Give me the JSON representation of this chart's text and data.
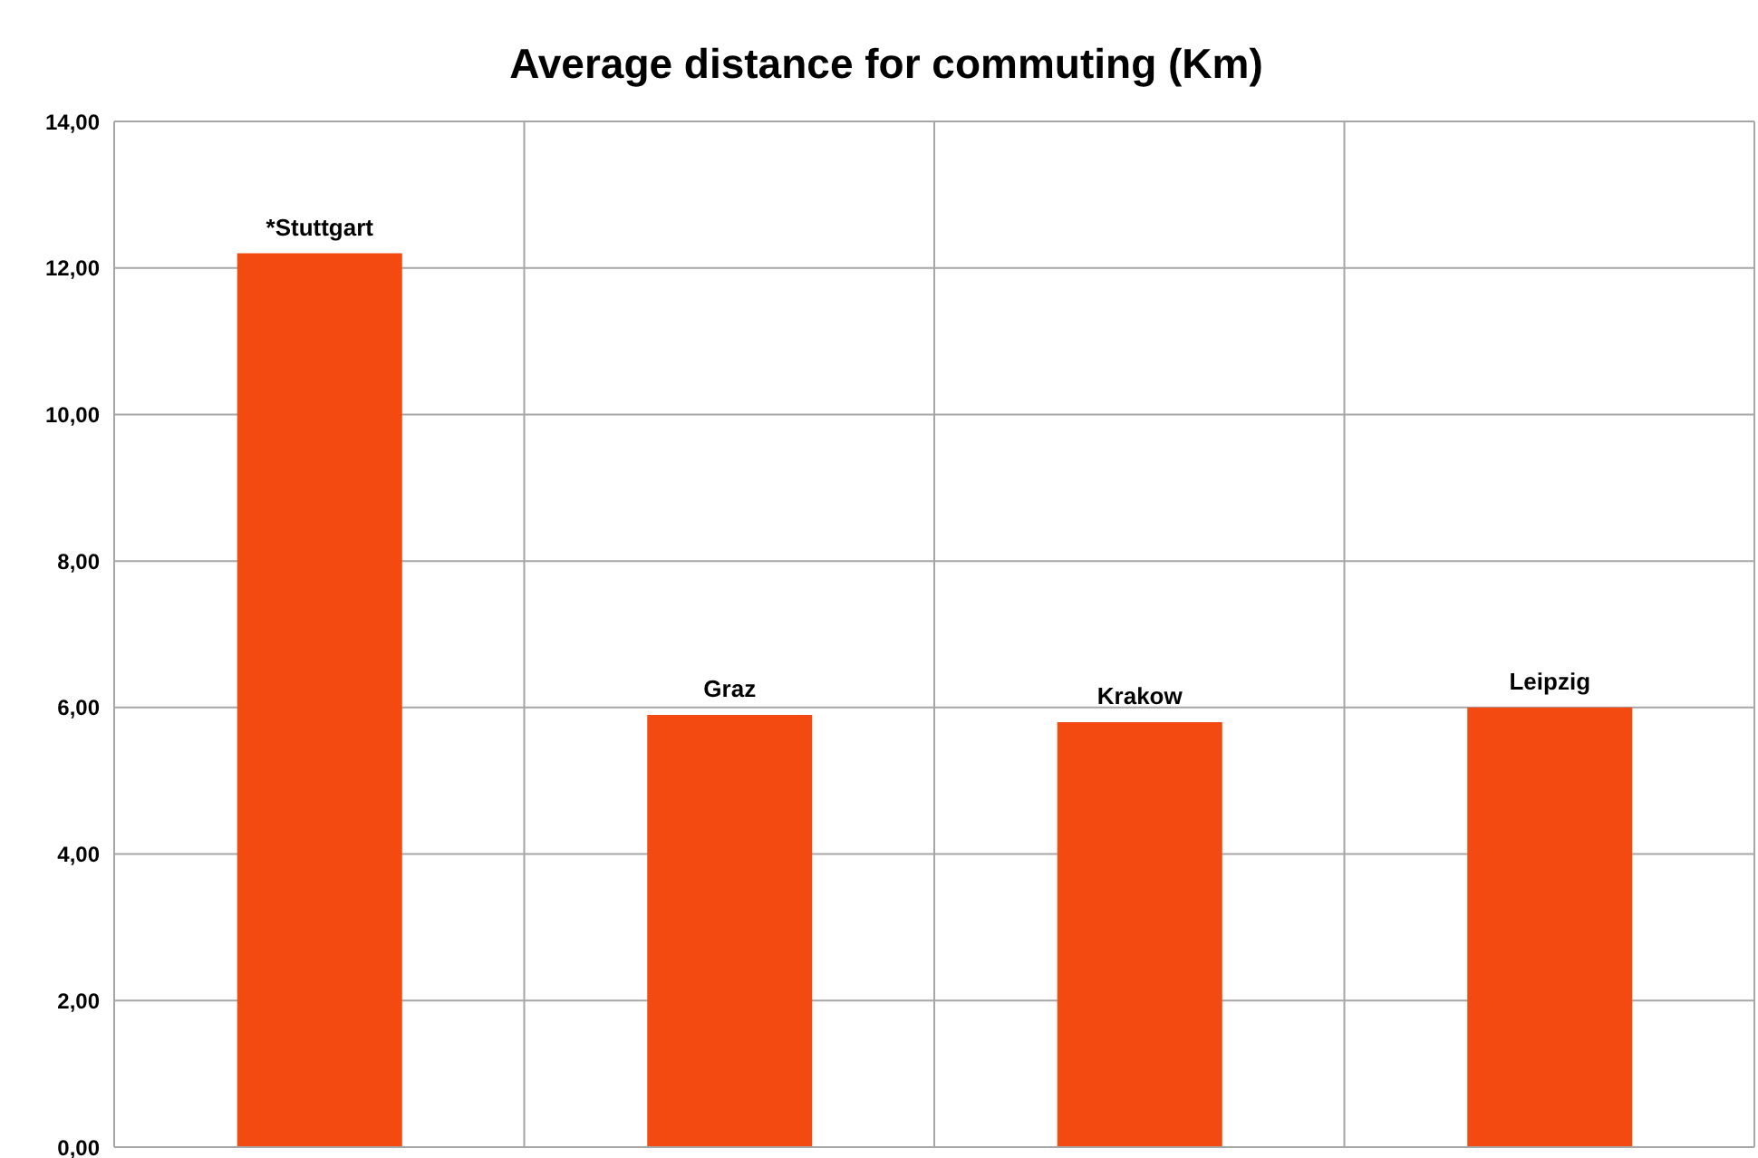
{
  "chart_data": {
    "type": "bar",
    "title": "Average distance for commuting (Km)",
    "categories": [
      "*Stuttgart",
      "Graz",
      "Krakow",
      "Leipzig"
    ],
    "values": [
      12.2,
      5.9,
      5.8,
      6.0
    ],
    "color": "#f24a11",
    "ylim": [
      0,
      14
    ],
    "yticks": [
      {
        "value": 0,
        "label": "0,00"
      },
      {
        "value": 2,
        "label": "2,00"
      },
      {
        "value": 4,
        "label": "4,00"
      },
      {
        "value": 6,
        "label": "6,00"
      },
      {
        "value": 8,
        "label": "8,00"
      },
      {
        "value": 10,
        "label": "10,00"
      },
      {
        "value": 12,
        "label": "12,00"
      },
      {
        "value": 14,
        "label": "14,00"
      }
    ],
    "grid": true
  }
}
